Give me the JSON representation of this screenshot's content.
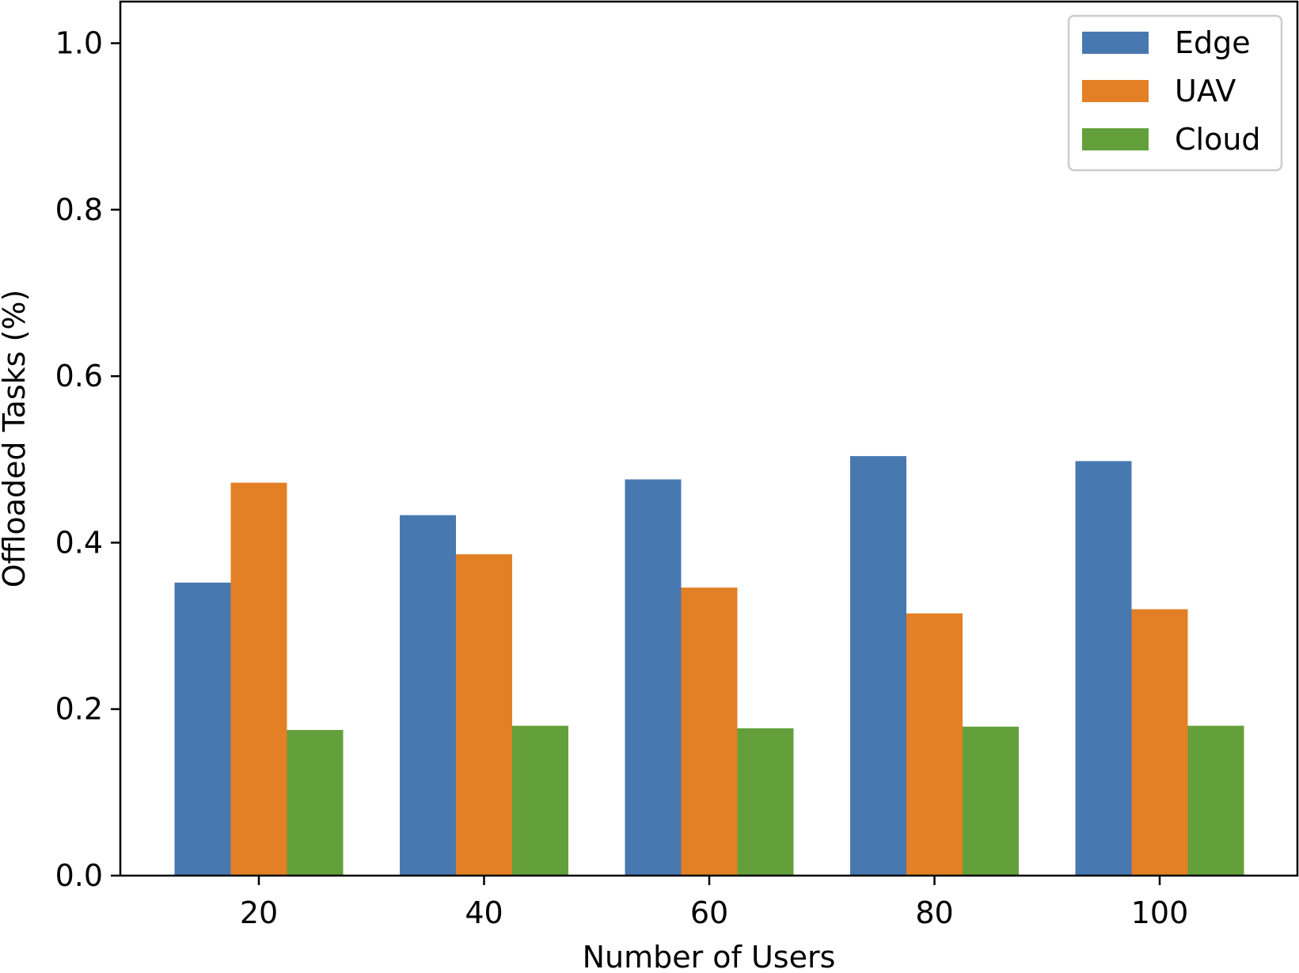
{
  "chart_data": {
    "type": "bar",
    "title": "",
    "xlabel": "Number of Users",
    "ylabel": "Offloaded Tasks (%)",
    "categories": [
      "20",
      "40",
      "60",
      "80",
      "100"
    ],
    "ylim": [
      0,
      1.05
    ],
    "yticks": [
      "0.0",
      "0.2",
      "0.4",
      "0.6",
      "0.8",
      "1.0"
    ],
    "grid": false,
    "legend_position": "top-right",
    "series": [
      {
        "name": "Edge",
        "color": "#4878b0",
        "values": [
          0.352,
          0.433,
          0.476,
          0.504,
          0.498
        ]
      },
      {
        "name": "UAV",
        "color": "#e37f25",
        "values": [
          0.472,
          0.386,
          0.346,
          0.315,
          0.32
        ]
      },
      {
        "name": "Cloud",
        "color": "#63a03b",
        "values": [
          0.175,
          0.18,
          0.177,
          0.179,
          0.18
        ]
      }
    ]
  }
}
